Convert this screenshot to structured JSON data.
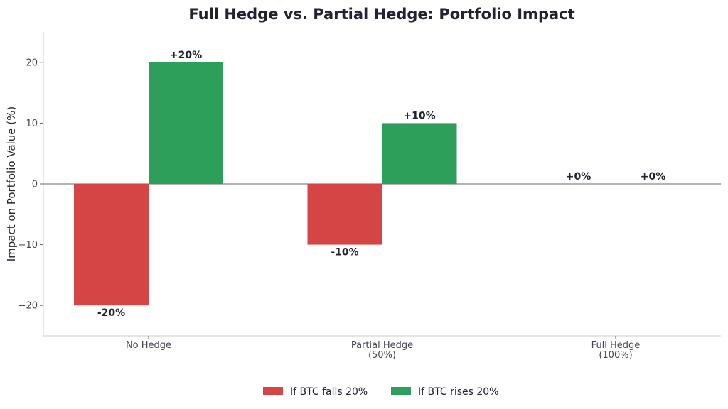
{
  "chart_data": {
    "type": "bar",
    "title": "Full Hedge vs. Partial Hedge: Portfolio Impact",
    "xlabel": "",
    "ylabel": "Impact on Portfolio Value (%)",
    "categories": [
      [
        "No Hedge"
      ],
      [
        "Partial Hedge",
        "(50%)"
      ],
      [
        "Full Hedge",
        "(100%)"
      ]
    ],
    "ylim": [
      -25,
      25
    ],
    "yticks": [
      -20,
      -10,
      0,
      10,
      20
    ],
    "ytick_labels": [
      "−20",
      "−10",
      "0",
      "10",
      "20"
    ],
    "grid": false,
    "legend_position": "bottom-center",
    "series": [
      {
        "name": "If BTC falls 20%",
        "values": [
          -20,
          -10,
          0
        ],
        "labels": [
          "-20%",
          "-10%",
          "+0%"
        ],
        "color": "#d64545"
      },
      {
        "name": "If BTC rises 20%",
        "values": [
          20,
          10,
          0
        ],
        "labels": [
          "+20%",
          "+10%",
          "+0%"
        ],
        "color": "#2e9e5b"
      }
    ]
  }
}
